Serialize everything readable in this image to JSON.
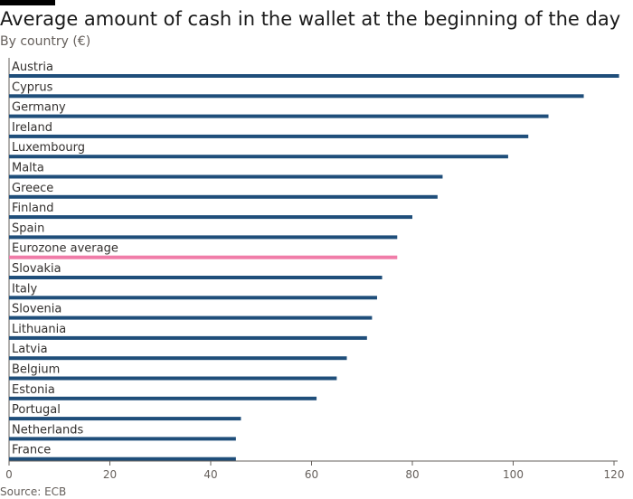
{
  "header": {
    "title": "Average amount of cash in the wallet at the beginning of the day",
    "subtitle": "By country (€)"
  },
  "footer": {
    "source": "Source: ECB"
  },
  "colors": {
    "bar": "#1f4e7a",
    "highlight": "#f07ca8",
    "axis": "#66605c",
    "label": "#33302e"
  },
  "chart_data": {
    "type": "bar",
    "orientation": "horizontal",
    "title": "Average amount of cash in the wallet at the beginning of the day",
    "subtitle": "By country (€)",
    "categories": [
      "Austria",
      "Cyprus",
      "Germany",
      "Ireland",
      "Luxembourg",
      "Malta",
      "Greece",
      "Finland",
      "Spain",
      "Eurozone average",
      "Slovakia",
      "Italy",
      "Slovenia",
      "Lithuania",
      "Latvia",
      "Belgium",
      "Estonia",
      "Portugal",
      "Netherlands",
      "France"
    ],
    "values": [
      121,
      114,
      107,
      103,
      99,
      86,
      85,
      80,
      77,
      77,
      74,
      73,
      72,
      71,
      67,
      65,
      61,
      46,
      45,
      45
    ],
    "highlight": "Eurozone average",
    "xlim": [
      0,
      120
    ],
    "xticks": [
      0,
      20,
      40,
      60,
      80,
      100,
      120
    ],
    "xlabel": "",
    "ylabel": "",
    "grid": false,
    "legend": "none"
  }
}
